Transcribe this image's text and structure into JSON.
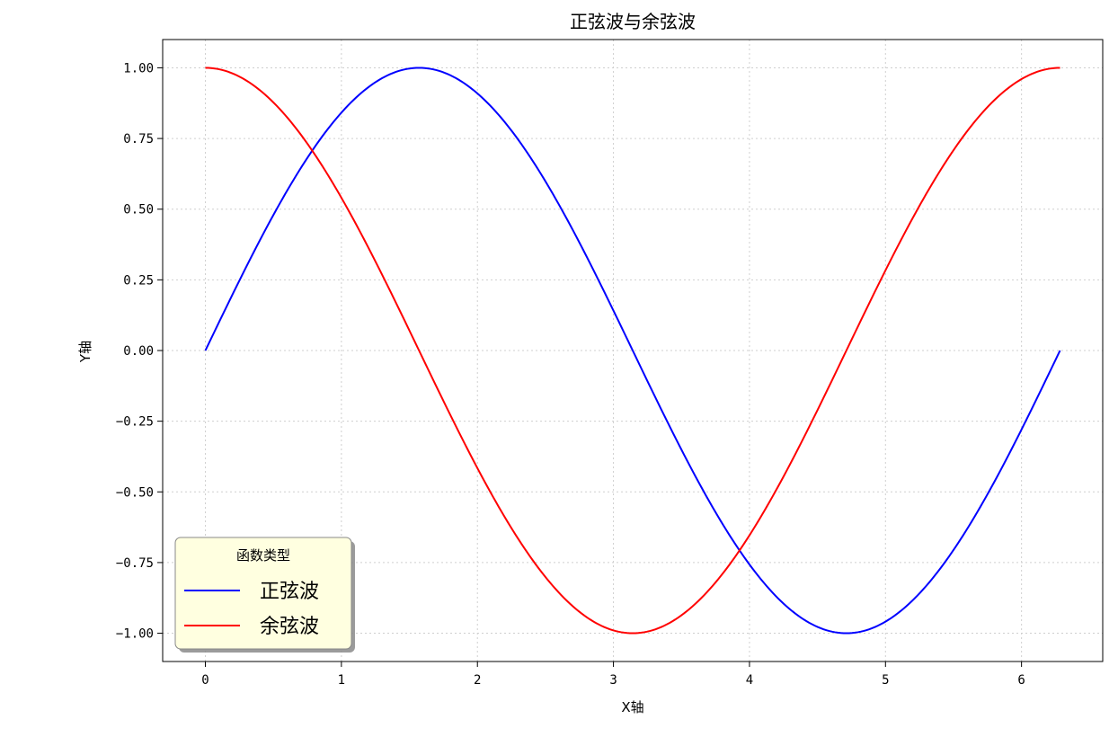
{
  "chart_data": {
    "type": "line",
    "title": "正弦波与余弦波",
    "xlabel": "X轴",
    "ylabel": "Y轴",
    "xlim": [
      -0.314,
      6.597
    ],
    "ylim": [
      -1.1,
      1.1
    ],
    "x_ticks": [
      "0",
      "1",
      "2",
      "3",
      "4",
      "5",
      "6"
    ],
    "y_ticks": [
      "1.00",
      "0.75",
      "0.50",
      "0.25",
      "0.00",
      "−0.25",
      "−0.50",
      "−0.75",
      "−1.00"
    ],
    "grid": true,
    "legend": {
      "title": "函数类型",
      "placement": "lower-left"
    },
    "x": [
      0,
      0.2618,
      0.5236,
      0.7854,
      1.0472,
      1.309,
      1.5708,
      1.8326,
      2.0944,
      2.3562,
      2.618,
      2.8798,
      3.1416,
      3.4034,
      3.6652,
      3.927,
      4.1888,
      4.4506,
      4.7124,
      4.9742,
      5.236,
      5.4978,
      5.7596,
      6.0214,
      6.2832
    ],
    "series": [
      {
        "name": "正弦波",
        "color": "#0000ff",
        "function": "sin",
        "values": [
          0,
          0.259,
          0.5,
          0.707,
          0.866,
          0.966,
          1,
          0.966,
          0.866,
          0.707,
          0.5,
          0.259,
          0,
          -0.259,
          -0.5,
          -0.707,
          -0.866,
          -0.966,
          -1,
          -0.966,
          -0.866,
          -0.707,
          -0.5,
          -0.259,
          0
        ]
      },
      {
        "name": "余弦波",
        "color": "#ff0000",
        "function": "cos",
        "values": [
          1,
          0.966,
          0.866,
          0.707,
          0.5,
          0.259,
          0,
          -0.259,
          -0.5,
          -0.707,
          -0.866,
          -0.966,
          -1,
          -0.966,
          -0.866,
          -0.707,
          -0.5,
          -0.259,
          0,
          0.259,
          0.5,
          0.707,
          0.866,
          0.966,
          1
        ]
      }
    ]
  }
}
